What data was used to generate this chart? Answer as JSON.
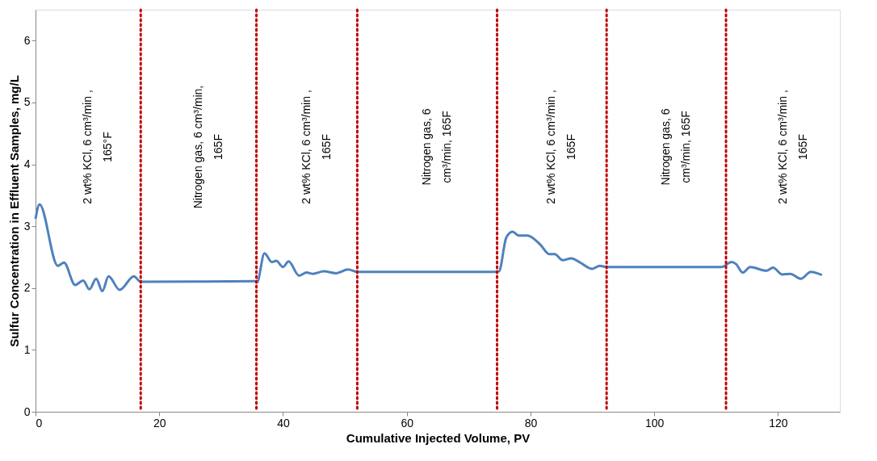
{
  "chart_data": {
    "type": "line",
    "xlabel": "Cumulative Injected Volume, PV",
    "ylabel": "Sulfur Concentration in Effluent Samples, mg/L",
    "xlim": [
      0,
      130
    ],
    "xticks": [
      0,
      20,
      40,
      60,
      80,
      100,
      120
    ],
    "ylim": [
      0,
      6.5
    ],
    "yticks": [
      0,
      1,
      2,
      3,
      4,
      5,
      6
    ],
    "grid": false,
    "marker": "none",
    "line_style": "solid",
    "series": [
      {
        "color": "#4f81bd",
        "x": [
          0,
          0.65,
          3.6,
          4.6,
          6.4,
          7.7,
          8.7,
          9.8,
          10.8,
          11.8,
          13.6,
          15.9,
          17,
          35.4,
          35.8,
          37.0,
          38.2,
          38.9,
          40,
          40.9,
          42.6,
          43.8,
          44.8,
          46.6,
          48.6,
          50.5,
          52.1,
          74.2,
          74.9,
          76.1,
          77.1,
          78.1,
          79.5,
          81.6,
          83,
          83.9,
          85.2,
          86.6,
          87.9,
          90,
          91.2,
          92.3,
          110.9,
          112.5,
          113.2,
          114.3,
          115.5,
          118.1,
          119.2,
          120.7,
          122,
          123.7,
          125.3,
          127.1
        ],
        "values": [
          3.12,
          3.35,
          2.36,
          2.41,
          2.05,
          2.12,
          1.98,
          2.15,
          1.95,
          2.19,
          1.97,
          2.19,
          2.1,
          2.11,
          2.09,
          2.56,
          2.42,
          2.44,
          2.34,
          2.43,
          2.2,
          2.25,
          2.23,
          2.27,
          2.24,
          2.3,
          2.26,
          2.26,
          2.27,
          2.82,
          2.91,
          2.85,
          2.85,
          2.7,
          2.55,
          2.55,
          2.45,
          2.48,
          2.42,
          2.31,
          2.36,
          2.34,
          2.34,
          2.42,
          2.39,
          2.25,
          2.34,
          2.28,
          2.33,
          2.22,
          2.23,
          2.15,
          2.26,
          2.21
        ]
      }
    ],
    "ref_lines": [
      {
        "axis": "x",
        "value": 17,
        "color": "#c00000",
        "line_style": "dotted"
      },
      {
        "axis": "x",
        "value": 35.7,
        "color": "#c00000",
        "line_style": "dotted"
      },
      {
        "axis": "x",
        "value": 52,
        "color": "#c00000",
        "line_style": "dotted"
      },
      {
        "axis": "x",
        "value": 74.6,
        "color": "#c00000",
        "line_style": "dotted"
      },
      {
        "axis": "x",
        "value": 92.3,
        "color": "#c00000",
        "line_style": "dotted"
      },
      {
        "axis": "x",
        "value": 111.6,
        "color": "#c00000",
        "line_style": "dotted"
      }
    ],
    "annotations": [
      "2 wt% KCl, 6 cm³/min ,\n165°F",
      "Nitrogen gas, 6 cm³/min,\n165F",
      "2 wt% KCl, 6 cm³/min ,\n165F",
      "Nitrogen gas, 6\ncm³/min, 165F",
      "2 wt% KCl, 6 cm³/min ,\n165F",
      "Nitrogen gas, 6\ncm³/min, 165F",
      "2 wt% KCl, 6 cm³/min ,\n165F"
    ]
  }
}
